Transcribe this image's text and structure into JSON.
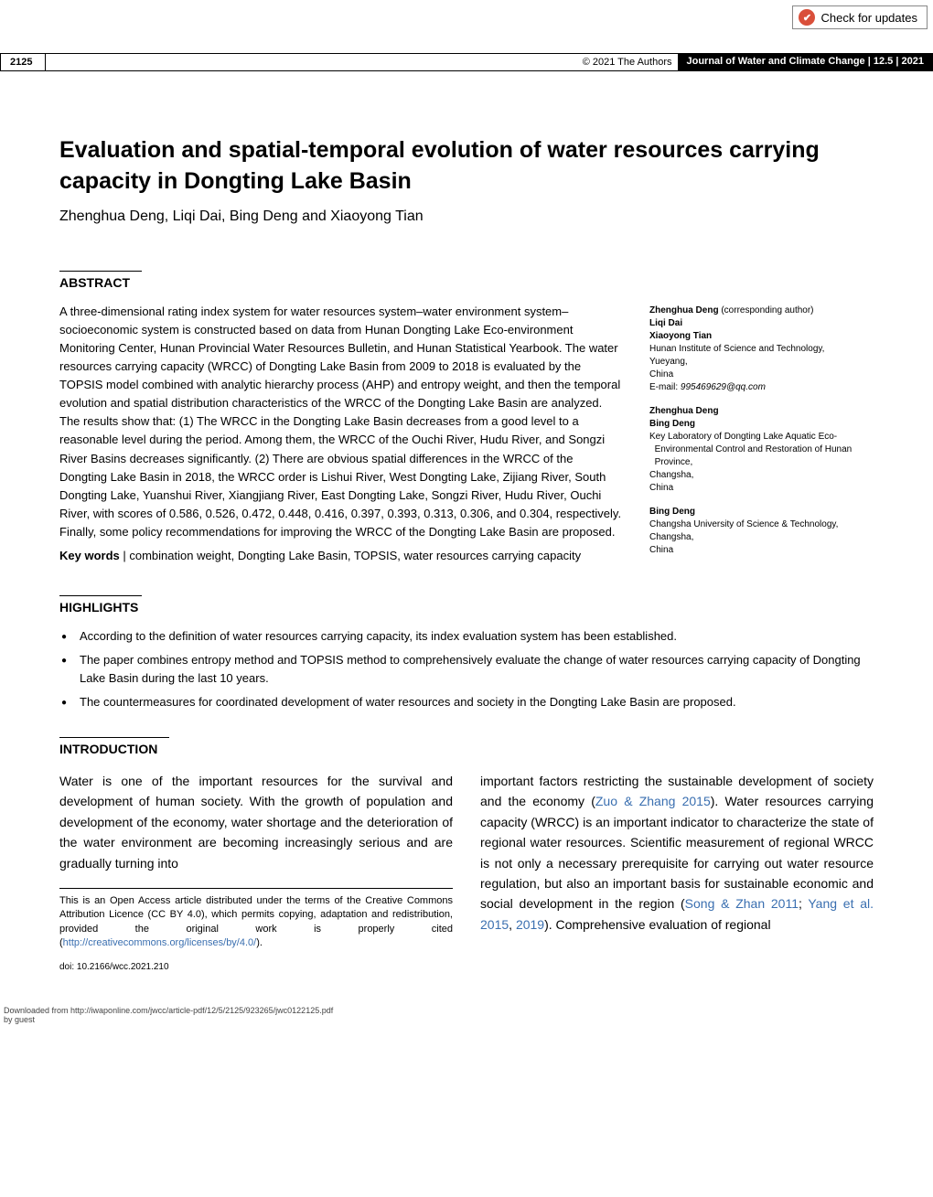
{
  "check_updates": {
    "label": "Check for updates",
    "icon_glyph": "✔"
  },
  "header": {
    "page_number": "2125",
    "copyright": "© 2021 The Authors",
    "journal": "Journal of Water and Climate Change",
    "volume_issue": "12.5",
    "year": "2021"
  },
  "title": "Evaluation and spatial-temporal evolution of water resources carrying capacity in Dongting Lake Basin",
  "authors_line": "Zhenghua Deng, Liqi Dai, Bing Deng and Xiaoyong Tian",
  "abstract": {
    "heading": "ABSTRACT",
    "text": "A three-dimensional rating index system for water resources system–water environment system–socioeconomic system is constructed based on data from Hunan Dongting Lake Eco-environment Monitoring Center, Hunan Provincial Water Resources Bulletin, and Hunan Statistical Yearbook. The water resources carrying capacity (WRCC) of Dongting Lake Basin from 2009 to 2018 is evaluated by the TOPSIS model combined with analytic hierarchy process (AHP) and entropy weight, and then the temporal evolution and spatial distribution characteristics of the WRCC of the Dongting Lake Basin are analyzed. The results show that: (1) The WRCC in the Dongting Lake Basin decreases from a good level to a reasonable level during the period. Among them, the WRCC of the Ouchi River, Hudu River, and Songzi River Basins decreases significantly. (2) There are obvious spatial differences in the WRCC of the Dongting Lake Basin in 2018, the WRCC order is Lishui River, West Dongting Lake, Zijiang River, South Dongting Lake, Yuanshui River, Xiangjiang River, East Dongting Lake, Songzi River, Hudu River, Ouchi River, with scores of 0.586, 0.526, 0.472, 0.448, 0.416, 0.397, 0.393, 0.313, 0.306, and 0.304, respectively. Finally, some policy recommendations for improving the WRCC of the Dongting Lake Basin are proposed.",
    "keywords_label": "Key words",
    "keywords": "combination weight, Dongting Lake Basin, TOPSIS, water resources carrying capacity"
  },
  "affiliations": {
    "block1": {
      "corresponding": "Zhenghua Deng",
      "corresponding_note": "(corresponding author)",
      "names": [
        "Liqi Dai",
        "Xiaoyong Tian"
      ],
      "lines": [
        "Hunan Institute of Science and Technology,",
        "Yueyang,",
        "China"
      ],
      "email_label": "E-mail:",
      "email": "995469629@qq.com"
    },
    "block2": {
      "names": [
        "Zhenghua Deng",
        "Bing Deng"
      ],
      "lines": [
        "Key Laboratory of Dongting Lake Aquatic Eco-",
        "Environmental Control and Restoration of Hunan",
        "Province,",
        "Changsha,",
        "China"
      ]
    },
    "block3": {
      "names": [
        "Bing Deng"
      ],
      "lines": [
        "Changsha University of Science & Technology,",
        "Changsha,",
        "China"
      ]
    }
  },
  "highlights": {
    "heading": "HIGHLIGHTS",
    "items": [
      "According to the definition of water resources carrying capacity, its index evaluation system has been established.",
      "The paper combines entropy method and TOPSIS method to comprehensively evaluate the change of water resources carrying capacity of Dongting Lake Basin during the last 10 years.",
      "The countermeasures for coordinated development of water resources and society in the Dongting Lake Basin are proposed."
    ]
  },
  "introduction": {
    "heading": "INTRODUCTION",
    "col1_text": "Water is one of the important resources for the survival and development of human society. With the growth of population and development of the economy, water shortage and the deterioration of the water environment are becoming increasingly serious and are gradually turning into",
    "col2_pre": "important factors restricting the sustainable development of society and the economy (",
    "col2_ref1": "Zuo & Zhang 2015",
    "col2_mid1": "). Water resources carrying capacity (WRCC) is an important indicator to characterize the state of regional water resources. Scientific measurement of regional WRCC is not only a necessary prerequisite for carrying out water resource regulation, but also an important basis for sustainable economic and social development in the region (",
    "col2_ref2": "Song & Zhan 2011",
    "col2_mid2": "; ",
    "col2_ref3": "Yang et al. 2015",
    "col2_mid3": ", ",
    "col2_ref4": "2019",
    "col2_post": "). Comprehensive evaluation of regional"
  },
  "footnote": {
    "text_pre": "This is an Open Access article distributed under the terms of the Creative Commons Attribution Licence (CC BY 4.0), which permits copying, adaptation and redistribution, provided the original work is properly cited (",
    "link": "http://creativecommons.org/licenses/by/4.0/",
    "text_post": ")."
  },
  "doi": "doi: 10.2166/wcc.2021.210",
  "download_note": {
    "line1": "Downloaded from http://iwaponline.com/jwcc/article-pdf/12/5/2125/923265/jwc0122125.pdf",
    "line2": "by guest"
  }
}
